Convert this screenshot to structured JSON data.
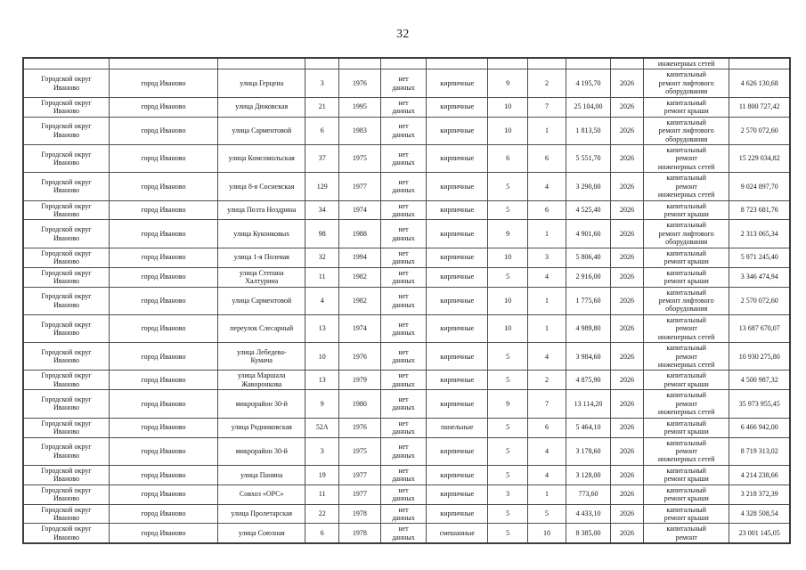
{
  "page": {
    "number": "32"
  },
  "table": {
    "column_ids": [
      "municipality",
      "settlement",
      "street",
      "house-number",
      "year-built",
      "data-status",
      "wall-material",
      "floors",
      "entrances",
      "area-sqm",
      "planned-year",
      "repair-type",
      "cost-rub"
    ],
    "rows": [
      [
        "",
        "",
        "",
        "",
        "",
        "",
        "",
        "",
        "",
        "",
        "",
        "инженерных сетей",
        ""
      ],
      [
        "Городской округ\nИваново",
        "город Иваново",
        "улица Герцена",
        "3",
        "1976",
        "нет\nданных",
        "кирпичные",
        "9",
        "2",
        "4 195,70",
        "2026",
        "капитальный\nремонт лифтового\nоборудования",
        "4 626 130,68"
      ],
      [
        "Городской округ\nИваново",
        "город Иваново",
        "улица Дюковская",
        "21",
        "1995",
        "нет\nданных",
        "кирпичные",
        "10",
        "7",
        "25 104,00",
        "2026",
        "капитальный\nремонт крыши",
        "11 800 727,42"
      ],
      [
        "Городской округ\nИваново",
        "город Иваново",
        "улица Сарментовой",
        "6",
        "1983",
        "нет\nданных",
        "кирпичные",
        "10",
        "1",
        "1 813,50",
        "2026",
        "капитальный\nремонт лифтового\nоборудования",
        "2 570 072,60"
      ],
      [
        "Городской округ\nИваново",
        "город Иваново",
        "улица Комсомольская",
        "37",
        "1975",
        "нет\nданных",
        "кирпичные",
        "6",
        "6",
        "5 551,70",
        "2026",
        "капитальный\nремонт\nинженерных сетей",
        "15 229 034,82"
      ],
      [
        "Городской округ\nИваново",
        "город Иваново",
        "улица 8-я Сосневская",
        "129",
        "1977",
        "нет\nданных",
        "кирпичные",
        "5",
        "4",
        "3 290,00",
        "2026",
        "капитальный\nремонт\nинженерных сетей",
        "9 024 897,70"
      ],
      [
        "Городской округ\nИваново",
        "город Иваново",
        "улица Поэта Ноздрина",
        "34",
        "1974",
        "нет\nданных",
        "кирпичные",
        "5",
        "6",
        "4 525,40",
        "2026",
        "капитальный\nремонт крыши",
        "8 723 681,76"
      ],
      [
        "Городской округ\nИваново",
        "город Иваново",
        "улица Куконковых",
        "98",
        "1988",
        "нет\nданных",
        "кирпичные",
        "9",
        "1",
        "4 901,60",
        "2026",
        "капитальный\nремонт лифтового\nоборудования",
        "2 313 065,34"
      ],
      [
        "Городской округ\nИваново",
        "город Иваново",
        "улица 1-я Полевая",
        "32",
        "1994",
        "нет\nданных",
        "кирпичные",
        "10",
        "3",
        "5 806,40",
        "2026",
        "капитальный\nремонт крыши",
        "5 971 245,40"
      ],
      [
        "Городской округ\nИваново",
        "город Иваново",
        "улица Степана\nХалтурина",
        "11",
        "1982",
        "нет\nданных",
        "кирпичные",
        "5",
        "4",
        "2 916,00",
        "2026",
        "капитальный\nремонт крыши",
        "3 346 474,94"
      ],
      [
        "Городской округ\nИваново",
        "город Иваново",
        "улица Сарментовой",
        "4",
        "1982",
        "нет\nданных",
        "кирпичные",
        "10",
        "1",
        "1 775,60",
        "2026",
        "капитальный\nремонт лифтового\nоборудования",
        "2 570 072,60"
      ],
      [
        "Городской округ\nИваново",
        "город Иваново",
        "переулок Слесарный",
        "13",
        "1974",
        "нет\nданных",
        "кирпичные",
        "10",
        "1",
        "4 989,80",
        "2026",
        "капитальный\nремонт\nинженерных сетей",
        "13 687 670,07"
      ],
      [
        "Городской округ\nИваново",
        "город Иваново",
        "улица Лебедева-\nКумача",
        "10",
        "1976",
        "нет\nданных",
        "кирпичные",
        "5",
        "4",
        "3 984,60",
        "2026",
        "капитальный\nремонт\nинженерных сетей",
        "10 930 275,80"
      ],
      [
        "Городской округ\nИваново",
        "город Иваново",
        "улица Маршала\nЖаворонкова",
        "13",
        "1979",
        "нет\nданных",
        "кирпичные",
        "5",
        "2",
        "4 875,90",
        "2026",
        "капитальный\nремонт крыши",
        "4 500 987,32"
      ],
      [
        "Городской округ\nИваново",
        "город Иваново",
        "микрорайон 30-й",
        "9",
        "1980",
        "нет\nданных",
        "кирпичные",
        "9",
        "7",
        "13 114,20",
        "2026",
        "капитальный\nремонт\nинженерных сетей",
        "35 973 955,45"
      ],
      [
        "Городской округ\nИваново",
        "город Иваново",
        "улица Родниковская",
        "52А",
        "1976",
        "нет\nданных",
        "панельные",
        "5",
        "6",
        "5 464,10",
        "2026",
        "капитальный\nремонт крыши",
        "6 466 942,00"
      ],
      [
        "Городской округ\nИваново",
        "город Иваново",
        "микрорайон 30-й",
        "3",
        "1975",
        "нет\nданных",
        "кирпичные",
        "5",
        "4",
        "3 178,60",
        "2026",
        "капитальный\nремонт\nинженерных сетей",
        "8 719 313,02"
      ],
      [
        "Городской округ\nИваново",
        "город Иваново",
        "улица Панина",
        "19",
        "1977",
        "нет\nданных",
        "кирпичные",
        "5",
        "4",
        "3 128,00",
        "2026",
        "капитальный\nремонт крыши",
        "4 214 238,66"
      ],
      [
        "Городской округ\nИваново",
        "город Иваново",
        "Совхоз «ОРС»",
        "11",
        "1977",
        "нет\nданных",
        "кирпичные",
        "3",
        "1",
        "773,60",
        "2026",
        "капитальный\nремонт крыши",
        "3 218 372,39"
      ],
      [
        "Городской округ\nИваново",
        "город Иваново",
        "улица Пролетарская",
        "22",
        "1978",
        "нет\nданных",
        "кирпичные",
        "5",
        "5",
        "4 433,10",
        "2026",
        "капитальный\nремонт крыши",
        "4 328 508,54"
      ],
      [
        "Городской округ\nИваново",
        "город Иваново",
        "улица Союзная",
        "6",
        "1978",
        "нет\nданных",
        "смешанные",
        "5",
        "10",
        "8 385,00",
        "2026",
        "капитальный\nремонт",
        "23 001 145,05"
      ]
    ]
  }
}
